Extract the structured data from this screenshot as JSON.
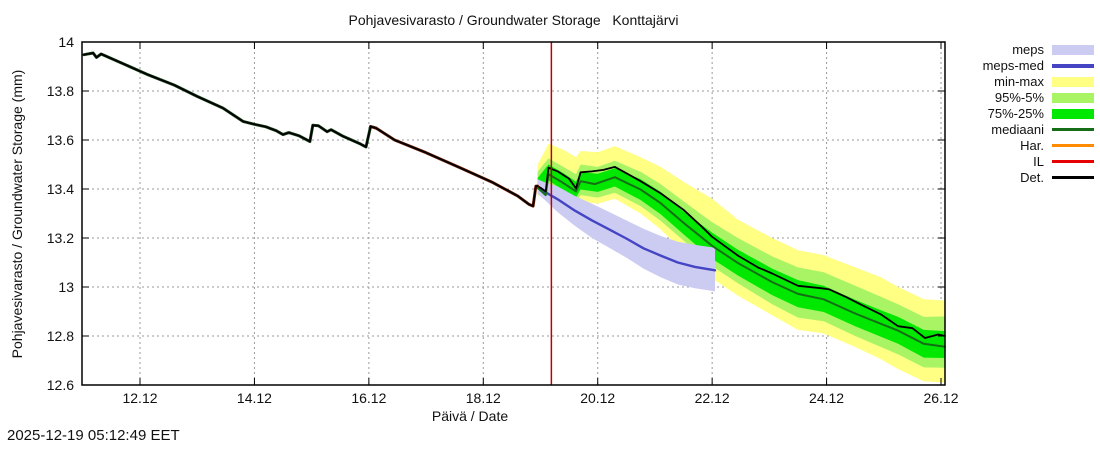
{
  "title": "Pohjavesivarasto / Groundwater Storage   Konttajärvi",
  "timestamp": "2025-12-19 05:12:49 EET",
  "axes": {
    "y_label": "Pohjavesivarasto / Groundwater Storage (mm)",
    "x_label": "Päivä / Date",
    "y_ticks": [
      14,
      13.8,
      13.6,
      13.4,
      13.2,
      13,
      12.8,
      12.6
    ],
    "y_tick_labels": [
      "14",
      "13.8",
      "13.6",
      "13.4",
      "13.2",
      "13",
      "12.8",
      "12.6"
    ],
    "x_tick_days": [
      12,
      14,
      16,
      18,
      20,
      22,
      24,
      26
    ],
    "x_tick_labels": [
      "12.12",
      "14.12",
      "16.12",
      "18.12",
      "20.12",
      "22.12",
      "24.12",
      "26.12"
    ],
    "x_range_days": [
      10.986,
      26.07
    ],
    "y_range": [
      12.6,
      14
    ],
    "grid": true
  },
  "legend": {
    "items": [
      {
        "key": "meps",
        "label": "meps",
        "swatch": "band",
        "color": "#ccccf2"
      },
      {
        "key": "meps-med",
        "label": "meps-med",
        "swatch": "line",
        "thick": 4,
        "color": "#4444c4"
      },
      {
        "key": "min-max",
        "label": "min-max",
        "swatch": "band",
        "color": "#ffff84"
      },
      {
        "key": "95-5",
        "label": "95%-5%",
        "swatch": "band",
        "color": "#a8f465"
      },
      {
        "key": "75-25",
        "label": "75%-25%",
        "swatch": "band",
        "color": "#00e800"
      },
      {
        "key": "mediaani",
        "label": "mediaani",
        "swatch": "line",
        "thick": 3,
        "color": "#156e15"
      },
      {
        "key": "har",
        "label": "Har.",
        "swatch": "line",
        "thick": 3,
        "color": "#ff8c00"
      },
      {
        "key": "il",
        "label": "IL",
        "swatch": "line",
        "thick": 3,
        "color": "#e60000"
      },
      {
        "key": "det",
        "label": "Det.",
        "swatch": "line",
        "thick": 3,
        "color": "#000000"
      }
    ]
  },
  "colors": {
    "grid": "#9a9a9a",
    "border": "#000000",
    "vline": "#c00000",
    "det": "#000000",
    "mediaani": "#156e15",
    "meps_med": "#4444c4",
    "band_minmax": "#ffff84",
    "band_95_5": "#a8f465",
    "band_75_25": "#00e800",
    "band_meps": "#ccccf2",
    "history_underlay_early": "#1c4a1c",
    "history_underlay_late": "#7a2408"
  },
  "chart_data": {
    "type": "line",
    "title": "Pohjavesivarasto / Groundwater Storage   Konttajärvi",
    "xlabel": "Päivä / Date",
    "ylabel": "Pohjavesivarasto / Groundwater Storage (mm)",
    "x_unit": "day of December",
    "ylim": [
      12.6,
      14
    ],
    "xlim_days": [
      10.986,
      26.07
    ],
    "vline_day": 19.19,
    "history_det": [
      [
        11.02,
        13.948
      ],
      [
        11.18,
        13.955
      ],
      [
        11.24,
        13.937
      ],
      [
        11.32,
        13.951
      ],
      [
        11.7,
        13.912
      ],
      [
        12.12,
        13.868
      ],
      [
        12.6,
        13.824
      ],
      [
        13.0,
        13.778
      ],
      [
        13.45,
        13.73
      ],
      [
        13.8,
        13.676
      ],
      [
        14.0,
        13.664
      ],
      [
        14.2,
        13.654
      ],
      [
        14.38,
        13.638
      ],
      [
        14.5,
        13.622
      ],
      [
        14.6,
        13.63
      ],
      [
        14.78,
        13.617
      ],
      [
        14.97,
        13.594
      ],
      [
        15.02,
        13.66
      ],
      [
        15.12,
        13.658
      ],
      [
        15.27,
        13.634
      ],
      [
        15.34,
        13.642
      ],
      [
        15.55,
        13.615
      ],
      [
        15.85,
        13.584
      ],
      [
        15.95,
        13.572
      ],
      [
        16.03,
        13.655
      ],
      [
        16.13,
        13.648
      ],
      [
        16.45,
        13.6
      ],
      [
        17.0,
        13.548
      ],
      [
        17.6,
        13.486
      ],
      [
        18.15,
        13.428
      ],
      [
        18.6,
        13.372
      ],
      [
        18.8,
        13.337
      ],
      [
        18.87,
        13.33
      ],
      [
        18.92,
        13.412
      ],
      [
        18.95,
        13.412
      ]
    ],
    "forecast": {
      "det": [
        [
          18.95,
          13.412
        ],
        [
          19.0,
          13.405
        ],
        [
          19.09,
          13.39
        ],
        [
          19.14,
          13.487
        ],
        [
          19.3,
          13.472
        ],
        [
          19.5,
          13.442
        ],
        [
          19.62,
          13.402
        ],
        [
          19.7,
          13.468
        ],
        [
          19.9,
          13.472
        ],
        [
          20.1,
          13.478
        ],
        [
          20.3,
          13.49
        ],
        [
          20.55,
          13.458
        ],
        [
          20.75,
          13.432
        ],
        [
          21.1,
          13.382
        ],
        [
          21.5,
          13.315
        ],
        [
          21.8,
          13.25
        ],
        [
          22.0,
          13.205
        ],
        [
          22.45,
          13.128
        ],
        [
          22.8,
          13.08
        ],
        [
          23.05,
          13.055
        ],
        [
          23.5,
          13.005
        ],
        [
          23.9,
          12.995
        ],
        [
          24.05,
          12.99
        ],
        [
          24.35,
          12.958
        ],
        [
          24.6,
          12.928
        ],
        [
          24.95,
          12.888
        ],
        [
          25.25,
          12.84
        ],
        [
          25.5,
          12.832
        ],
        [
          25.72,
          12.792
        ],
        [
          25.95,
          12.806
        ],
        [
          26.07,
          12.8
        ]
      ],
      "mediaani": [
        [
          18.95,
          13.405
        ],
        [
          19.09,
          13.375
        ],
        [
          19.14,
          13.46
        ],
        [
          19.35,
          13.432
        ],
        [
          19.62,
          13.39
        ],
        [
          19.7,
          13.432
        ],
        [
          19.95,
          13.42
        ],
        [
          20.3,
          13.448
        ],
        [
          20.55,
          13.42
        ],
        [
          20.75,
          13.398
        ],
        [
          21.1,
          13.342
        ],
        [
          21.5,
          13.262
        ],
        [
          22.0,
          13.168
        ],
        [
          22.45,
          13.098
        ],
        [
          23.05,
          13.02
        ],
        [
          23.5,
          12.972
        ],
        [
          23.95,
          12.95
        ],
        [
          24.5,
          12.892
        ],
        [
          24.95,
          12.85
        ],
        [
          25.25,
          12.822
        ],
        [
          25.7,
          12.768
        ],
        [
          26.07,
          12.756
        ]
      ],
      "meps_med": [
        [
          18.95,
          13.408
        ],
        [
          19.1,
          13.385
        ],
        [
          19.3,
          13.358
        ],
        [
          19.6,
          13.312
        ],
        [
          19.9,
          13.272
        ],
        [
          20.2,
          13.235
        ],
        [
          20.5,
          13.198
        ],
        [
          20.8,
          13.158
        ],
        [
          21.1,
          13.128
        ],
        [
          21.4,
          13.1
        ],
        [
          21.7,
          13.082
        ],
        [
          22.05,
          13.068
        ]
      ]
    },
    "bands": {
      "minmax": [
        [
          18.95,
          13.37,
          13.5
        ],
        [
          19.14,
          13.39,
          13.585
        ],
        [
          19.4,
          13.35,
          13.56
        ],
        [
          19.62,
          13.33,
          13.53
        ],
        [
          19.7,
          13.35,
          13.555
        ],
        [
          20.0,
          13.34,
          13.55
        ],
        [
          20.3,
          13.36,
          13.575
        ],
        [
          20.75,
          13.3,
          13.53
        ],
        [
          21.1,
          13.235,
          13.49
        ],
        [
          21.5,
          13.145,
          13.43
        ],
        [
          22.0,
          13.035,
          13.36
        ],
        [
          22.45,
          12.965,
          13.275
        ],
        [
          23.05,
          12.885,
          13.2
        ],
        [
          23.5,
          12.825,
          13.15
        ],
        [
          23.95,
          12.81,
          13.13
        ],
        [
          24.5,
          12.755,
          13.08
        ],
        [
          24.95,
          12.705,
          13.04
        ],
        [
          25.25,
          12.665,
          13.0
        ],
        [
          25.7,
          12.615,
          12.95
        ],
        [
          26.07,
          12.61,
          12.945
        ]
      ],
      "p95_5": [
        [
          18.95,
          13.39,
          13.47
        ],
        [
          19.14,
          13.415,
          13.525
        ],
        [
          19.4,
          13.375,
          13.49
        ],
        [
          19.62,
          13.345,
          13.46
        ],
        [
          19.7,
          13.375,
          13.5
        ],
        [
          20.0,
          13.365,
          13.49
        ],
        [
          20.3,
          13.385,
          13.515
        ],
        [
          20.75,
          13.33,
          13.47
        ],
        [
          21.1,
          13.27,
          13.42
        ],
        [
          21.5,
          13.19,
          13.35
        ],
        [
          22.0,
          13.085,
          13.265
        ],
        [
          22.45,
          13.015,
          13.2
        ],
        [
          23.05,
          12.93,
          13.125
        ],
        [
          23.5,
          12.875,
          13.08
        ],
        [
          23.95,
          12.86,
          13.06
        ],
        [
          24.5,
          12.8,
          13.005
        ],
        [
          24.95,
          12.755,
          12.96
        ],
        [
          25.25,
          12.725,
          12.93
        ],
        [
          25.7,
          12.672,
          12.878
        ],
        [
          26.07,
          12.67,
          12.88
        ]
      ],
      "p75_25": [
        [
          18.95,
          13.4,
          13.445
        ],
        [
          19.14,
          13.435,
          13.5
        ],
        [
          19.4,
          13.395,
          13.465
        ],
        [
          19.62,
          13.365,
          13.43
        ],
        [
          19.7,
          13.398,
          13.468
        ],
        [
          20.0,
          13.388,
          13.462
        ],
        [
          20.3,
          13.41,
          13.485
        ],
        [
          20.75,
          13.355,
          13.44
        ],
        [
          21.1,
          13.297,
          13.388
        ],
        [
          21.5,
          13.215,
          13.308
        ],
        [
          22.0,
          13.115,
          13.222
        ],
        [
          22.45,
          13.047,
          13.152
        ],
        [
          23.05,
          12.967,
          13.075
        ],
        [
          23.5,
          12.917,
          13.028
        ],
        [
          23.95,
          12.898,
          13.005
        ],
        [
          24.5,
          12.84,
          12.948
        ],
        [
          24.95,
          12.797,
          12.905
        ],
        [
          25.25,
          12.768,
          12.878
        ],
        [
          25.7,
          12.712,
          12.825
        ],
        [
          26.07,
          12.71,
          12.82
        ]
      ],
      "meps": [
        [
          18.95,
          13.38,
          13.44
        ],
        [
          19.1,
          13.35,
          13.425
        ],
        [
          19.3,
          13.305,
          13.41
        ],
        [
          19.6,
          13.25,
          13.372
        ],
        [
          19.9,
          13.2,
          13.34
        ],
        [
          20.2,
          13.16,
          13.306
        ],
        [
          20.5,
          13.12,
          13.272
        ],
        [
          20.8,
          13.075,
          13.238
        ],
        [
          21.1,
          13.04,
          13.208
        ],
        [
          21.4,
          13.01,
          13.185
        ],
        [
          21.7,
          12.995,
          13.172
        ],
        [
          22.05,
          12.982,
          13.16
        ]
      ]
    }
  }
}
